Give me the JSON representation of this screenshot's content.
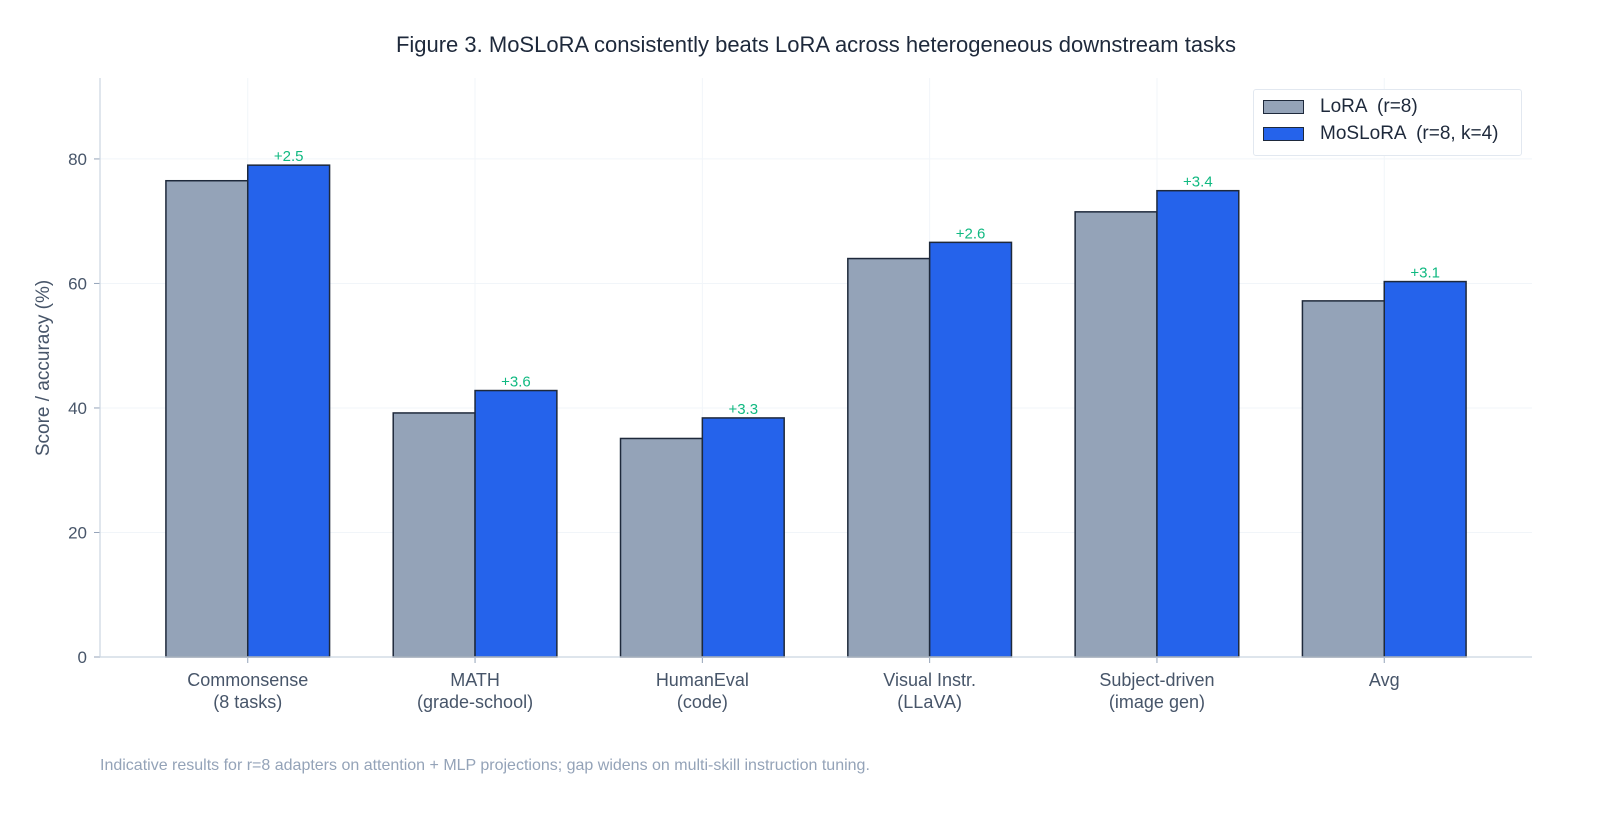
{
  "chart_data": {
    "type": "bar",
    "title": "Figure 3. MoSLoRA consistently beats LoRA across heterogeneous downstream tasks",
    "xlabel": "",
    "ylabel": "Score / accuracy (%)",
    "ylim": [
      0,
      93
    ],
    "yticks": [
      0,
      20,
      40,
      60,
      80
    ],
    "grid": true,
    "legend_position": "top-right",
    "categories": [
      [
        "Commonsense",
        "(8 tasks)"
      ],
      [
        "MATH",
        "(grade-school)"
      ],
      [
        "HumanEval",
        "(code)"
      ],
      [
        "Visual Instr.",
        "(LLaVA)"
      ],
      [
        "Subject-driven",
        "(image gen)"
      ],
      [
        "Avg",
        ""
      ]
    ],
    "series": [
      {
        "name": "LoRA  (r=8)",
        "color": "#94a3b8",
        "values": [
          76.5,
          39.2,
          35.1,
          64.0,
          71.5,
          57.2
        ]
      },
      {
        "name": "MoSLoRA  (r=8, k=4)",
        "color": "#2563eb",
        "values": [
          79.0,
          42.8,
          38.4,
          66.6,
          74.9,
          60.3
        ]
      }
    ],
    "annotations": [
      "+2.5",
      "+3.6",
      "+3.3",
      "+2.6",
      "+3.4",
      "+3.1"
    ],
    "annotation_color": "#10b981",
    "note": "Indicative results for r=8 adapters on attention + MLP projections; gap widens on multi-skill instruction tuning."
  }
}
